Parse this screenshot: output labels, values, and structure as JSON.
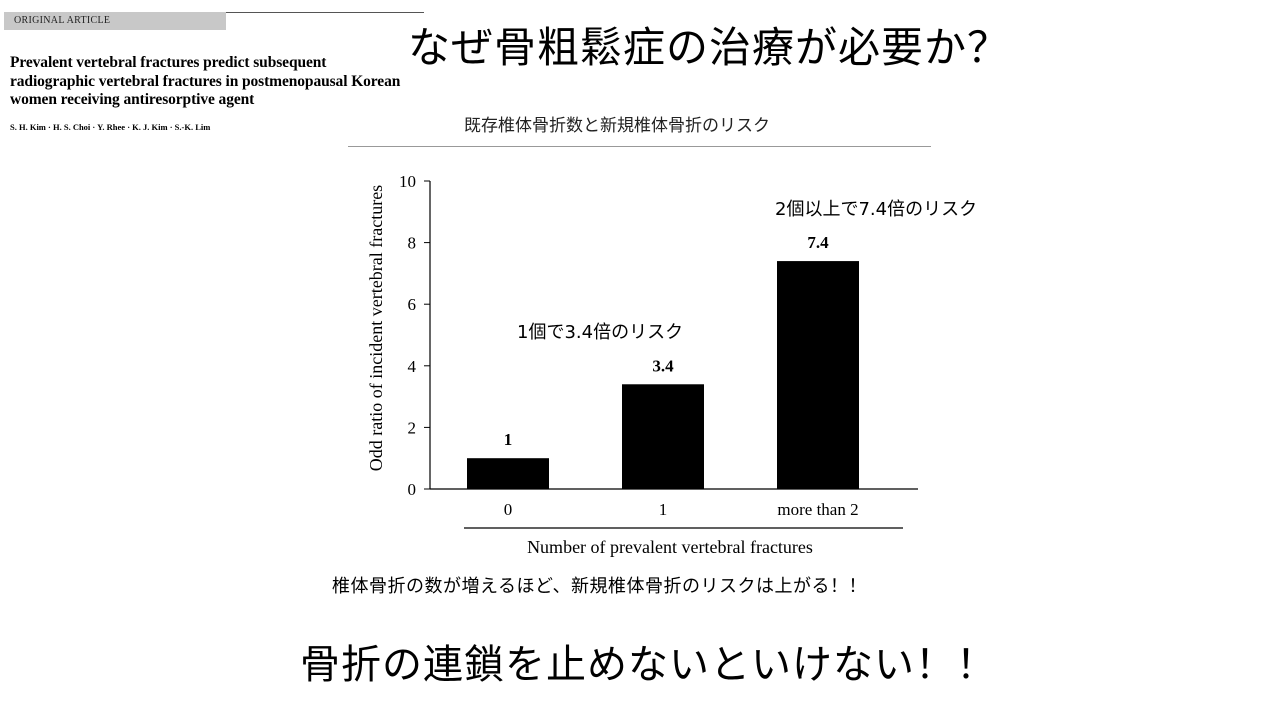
{
  "article": {
    "section_label": "ORIGINAL ARTICLE",
    "title_lines": [
      "Prevalent vertebral fractures predict subsequent",
      "radiographic vertebral fractures in postmenopausal Korean",
      "women receiving antiresorptive agent"
    ],
    "authors": "S. H. Kim · H. S. Choi · Y. Rhee · K. J. Kim · S.-K. Lim"
  },
  "heading": "なぜ骨粗鬆症の治療が必要か？",
  "chart_caption": "既存椎体骨折数と新規椎体骨折のリスク",
  "annotations": {
    "one_fracture": "1個で3.4倍のリスク",
    "two_or_more": "2個以上で7.4倍のリスク"
  },
  "note": "椎体骨折の数が増えるほど、新規椎体骨折のリスクは上がる！！",
  "conclusion": "骨折の連鎖を止めないといけない！！",
  "colors": {
    "bar": "#000000",
    "axis": "#000000",
    "background": "#ffffff"
  },
  "chart_data": {
    "type": "bar",
    "categories": [
      "0",
      "1",
      "more than 2"
    ],
    "values": [
      1,
      3.4,
      7.4
    ],
    "data_labels": [
      "1",
      "3.4",
      "7.4"
    ],
    "xlabel": "Number of prevalent vertebral fractures",
    "ylabel": "Odd ratio of incident vertebral fractures",
    "ylim": [
      0,
      10
    ],
    "yticks": [
      0,
      2,
      4,
      6,
      8,
      10
    ],
    "grid": false,
    "legend": "none"
  }
}
